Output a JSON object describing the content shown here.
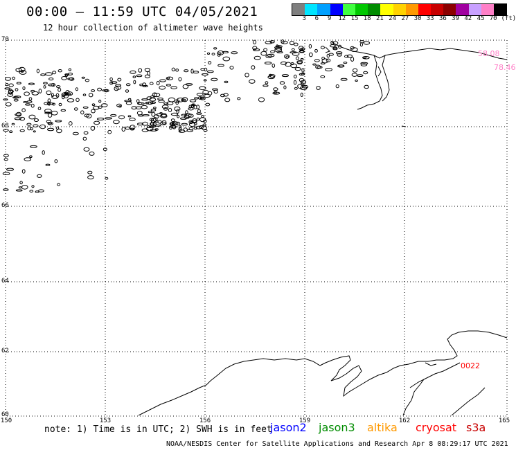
{
  "header": {
    "title": "00:00 – 11:59 UTC 04/05/2021",
    "subtitle": "12 hour collection of altimeter wave heights"
  },
  "legend": {
    "unit": "(ft)",
    "swatches": [
      {
        "value": "3",
        "color": "#7f7f7f"
      },
      {
        "value": "6",
        "color": "#00e5ff"
      },
      {
        "value": "9",
        "color": "#00a0ff"
      },
      {
        "value": "12",
        "color": "#0000ff"
      },
      {
        "value": "15",
        "color": "#40ff40"
      },
      {
        "value": "18",
        "color": "#00c800"
      },
      {
        "value": "21",
        "color": "#008c00"
      },
      {
        "value": "24",
        "color": "#ffff00"
      },
      {
        "value": "27",
        "color": "#ffd200"
      },
      {
        "value": "30",
        "color": "#ff9900"
      },
      {
        "value": "33",
        "color": "#ff0000"
      },
      {
        "value": "36",
        "color": "#c80000"
      },
      {
        "value": "39",
        "color": "#8c0000"
      },
      {
        "value": "42",
        "color": "#a000a0"
      },
      {
        "value": "45",
        "color": "#c8a0ff"
      },
      {
        "value": "70",
        "color": "#ff80c8"
      },
      {
        "value": "",
        "color": "#000000"
      }
    ]
  },
  "map": {
    "lat_labels": [
      "70",
      "68",
      "66",
      "64",
      "62",
      "60"
    ],
    "lon_labels": [
      "150",
      "153",
      "156",
      "159",
      "162",
      "165"
    ],
    "track_labels": [
      {
        "text": "58.08",
        "color": "#ff80c8"
      },
      {
        "text": "78.46",
        "color": "#ff80c8"
      },
      {
        "text": "0022",
        "color": "#ff0000"
      }
    ]
  },
  "footer": {
    "note": "note: 1) Time is in UTC; 2) SWH is in feet",
    "satellites": [
      {
        "name": "jason2",
        "color": "#0000ff"
      },
      {
        "name": "jason3",
        "color": "#008c00"
      },
      {
        "name": "altika",
        "color": "#ff9900"
      },
      {
        "name": "cryosat",
        "color": "#ff0000"
      },
      {
        "name": "s3a",
        "color": "#c80000"
      }
    ],
    "credit": "NOAA/NESDIS Center for Satellite Applications and Research   Apr  8 08:29:17 UTC 2021"
  }
}
